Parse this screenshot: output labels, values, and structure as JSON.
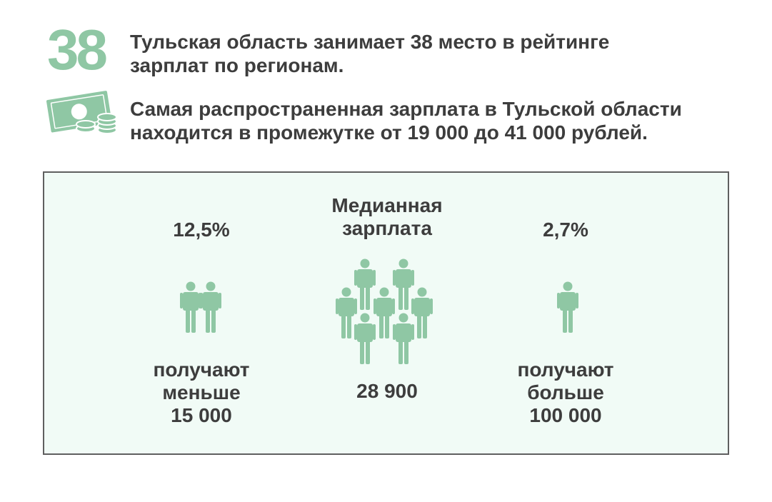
{
  "rank": {
    "number": "38",
    "text_line1": "Тульская область занимает 38 место в рейтинге",
    "text_line2": "зарплат по регионам."
  },
  "range": {
    "icon": "money-coins-icon",
    "text_line1": "Самая распространенная зарплата в Тульской области",
    "text_line2": "находится в промежутке от 19 000 до 41 000 рублей."
  },
  "panel": {
    "below": {
      "percent": "12,5%",
      "caption_line1": "получают",
      "caption_line2": "меньше",
      "caption_line3": "15 000",
      "people_icons": 2
    },
    "median": {
      "title_line1": "Медианная",
      "title_line2": "зарплата",
      "value": "28 900",
      "people_icons": 7
    },
    "above": {
      "percent": "2,7%",
      "caption_line1": "получают",
      "caption_line2": "больше",
      "caption_line3": "100 000",
      "people_icons": 1
    }
  },
  "colors": {
    "accent": "#8fc7a4",
    "text": "#3d3d3d",
    "panel_bg": "#f1fbf6",
    "panel_border": "#5f5f5f"
  }
}
